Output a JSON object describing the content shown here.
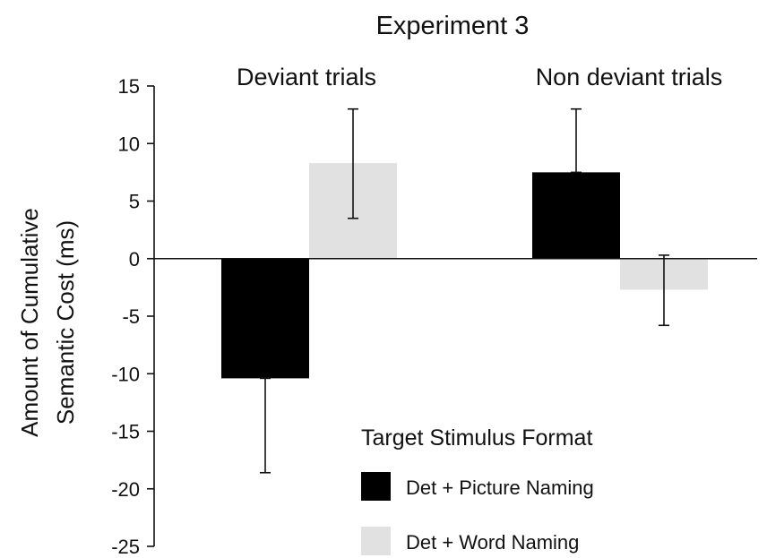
{
  "chart_data": {
    "type": "bar",
    "title": "Experiment 3",
    "xlabel": "",
    "ylabel_lines": [
      "Amount of Cumulative",
      "Semantic Cost (ms)"
    ],
    "ylim": [
      -25,
      15
    ],
    "yticks": [
      15,
      10,
      5,
      0,
      -5,
      -10,
      -15,
      -20,
      -25
    ],
    "ytick_labels": [
      "15",
      "10",
      "5",
      "0",
      "-5",
      "-10",
      "-15",
      "-20",
      "-25"
    ],
    "categories": [
      "Deviant trials",
      "Non deviant trials"
    ],
    "series": [
      {
        "name": "Det + Picture Naming",
        "color": "#000000",
        "values": [
          -10.4,
          7.5
        ],
        "error_high": [
          -10.4,
          13.0
        ],
        "error_low": [
          -18.6,
          7.5
        ],
        "error_top": [
          -10.4,
          13.0
        ],
        "error_bottom": [
          -18.6,
          7.5
        ]
      },
      {
        "name": "Det + Word Naming",
        "color": "#e1e1e1",
        "values": [
          8.3,
          -2.7
        ],
        "error_high": [
          13.0,
          0.3
        ],
        "error_low": [
          3.5,
          -5.8
        ],
        "error_top": [
          13.0,
          0.3
        ],
        "error_bottom": [
          3.5,
          -5.8
        ]
      }
    ],
    "grid": false,
    "legend": {
      "title": "Target Stimulus Format",
      "placement": "bottom-right"
    }
  }
}
